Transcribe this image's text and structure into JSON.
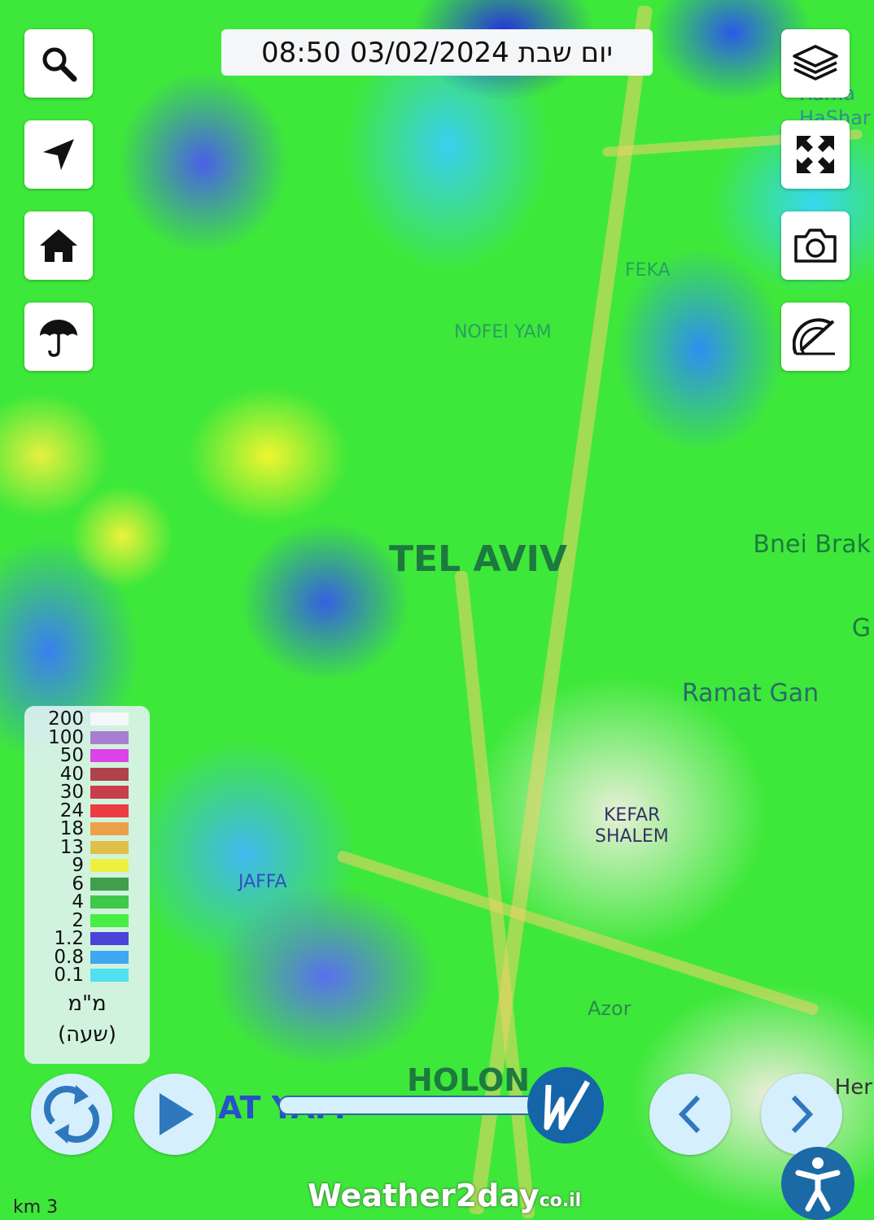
{
  "header": {
    "datetime": "יום שבת 03/02/2024 08:50"
  },
  "left_toolbar": [
    {
      "icon": "search-icon"
    },
    {
      "icon": "location-arrow-icon"
    },
    {
      "icon": "home-icon"
    },
    {
      "icon": "umbrella-icon"
    }
  ],
  "right_toolbar": [
    {
      "icon": "layers-icon"
    },
    {
      "icon": "fullscreen-icon"
    },
    {
      "icon": "camera-icon"
    },
    {
      "icon": "ruler-protractor-icon"
    }
  ],
  "map_labels": {
    "tel_aviv": "TEL AVIV",
    "bnei_brak": "Bnei Brak",
    "ramat_gan": "Ramat Gan",
    "nofei_yam": "NOFEI YAM",
    "feka": "FEKA",
    "kefar_shalem_1": "KEFAR",
    "kefar_shalem_2": "SHALEM",
    "jaffa": "JAFFA",
    "azor": "Azor",
    "holon": "HOLON",
    "bat_yam": "AT YAM",
    "her": "Her",
    "g": "G",
    "ramat_hasharon": "Rama HaShar"
  },
  "legend": {
    "items": [
      {
        "value": "200",
        "color": "#f4f8fa"
      },
      {
        "value": "100",
        "color": "#a97ed0"
      },
      {
        "value": "50",
        "color": "#dd44e8"
      },
      {
        "value": "40",
        "color": "#b0424e"
      },
      {
        "value": "30",
        "color": "#c83e4a"
      },
      {
        "value": "24",
        "color": "#ec3d42"
      },
      {
        "value": "18",
        "color": "#eca048"
      },
      {
        "value": "13",
        "color": "#e0c048"
      },
      {
        "value": "9",
        "color": "#eef040"
      },
      {
        "value": "6",
        "color": "#3f9f4a"
      },
      {
        "value": "4",
        "color": "#3fc84a"
      },
      {
        "value": "2",
        "color": "#46ee46"
      },
      {
        "value": "1.2",
        "color": "#4a44d8"
      },
      {
        "value": "0.8",
        "color": "#40a8f0"
      },
      {
        "value": "0.1",
        "color": "#50e0f0"
      }
    ],
    "unit": "מ\"מ",
    "unit2": "(שעה)"
  },
  "playback": {
    "slider_position_percent": 100
  },
  "brand": {
    "name": "Weather2day",
    "tld": "co.il"
  },
  "scale": "km 3",
  "colors": {
    "accent": "#1f6eac",
    "button_bg": "#d6effc"
  }
}
